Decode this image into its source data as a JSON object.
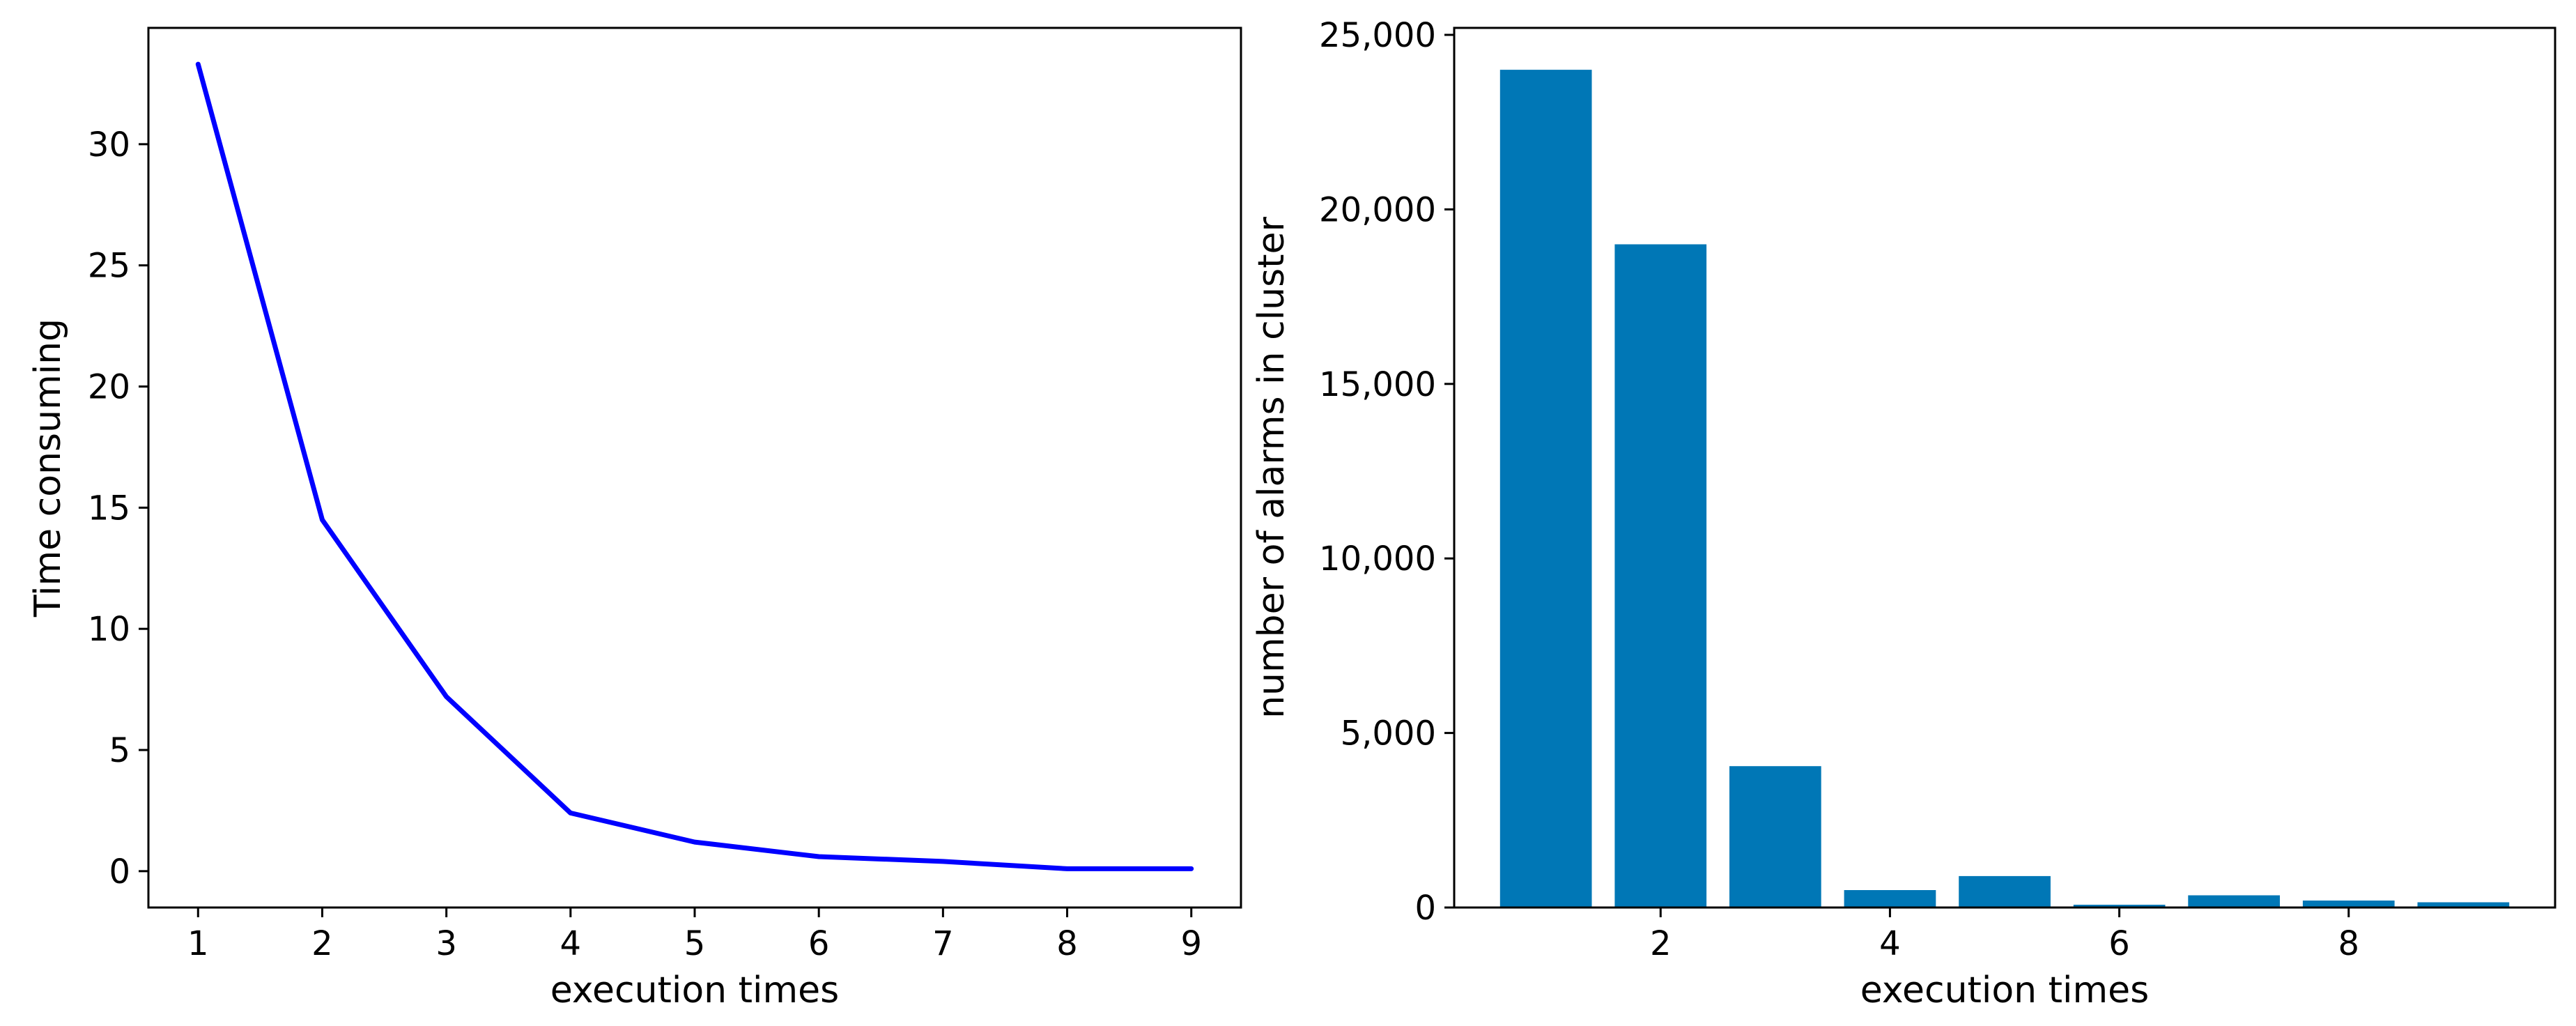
{
  "chart_data": [
    {
      "type": "line",
      "xlabel": "execution times",
      "ylabel": "Time consuming",
      "x": [
        1,
        2,
        3,
        4,
        5,
        6,
        7,
        8,
        9
      ],
      "series": [
        {
          "values": [
            33.3,
            14.5,
            7.2,
            2.4,
            1.2,
            0.6,
            0.4,
            0.1,
            0.1
          ]
        }
      ],
      "xlim": [
        0.6,
        9.4
      ],
      "ylim": [
        -1.5,
        34.8
      ],
      "xticks": [
        1,
        2,
        3,
        4,
        5,
        6,
        7,
        8,
        9
      ],
      "yticks": [
        0,
        5,
        10,
        15,
        20,
        25,
        30
      ],
      "line_color": "#0000ff",
      "grid": false,
      "legend": "none"
    },
    {
      "type": "bar",
      "xlabel": "execution times",
      "ylabel": "number of alarms in cluster",
      "x": [
        1,
        2,
        3,
        4,
        5,
        6,
        7,
        8,
        9
      ],
      "values": [
        24000,
        19000,
        4050,
        500,
        900,
        80,
        350,
        200,
        150
      ],
      "xlim": [
        0.2,
        9.8
      ],
      "ylim": [
        0,
        25200
      ],
      "xticks": [
        2,
        4,
        6,
        8
      ],
      "yticks": [
        0,
        5000,
        10000,
        15000,
        20000,
        25000
      ],
      "ytick_labels": [
        "0",
        "5,000",
        "10,000",
        "15,000",
        "20,000",
        "25,000"
      ],
      "bar_width": 0.8,
      "bar_color": "#0077b6",
      "grid": false,
      "legend": "none"
    }
  ]
}
